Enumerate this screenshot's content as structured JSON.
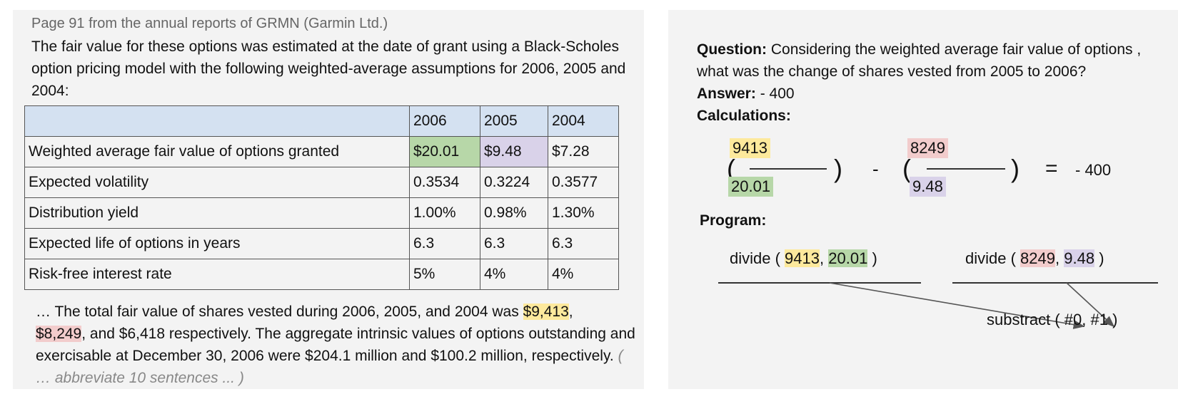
{
  "left": {
    "caption": "Page 91 from the annual reports of GRMN (Garmin Ltd.)",
    "intro": "The fair value for these options was estimated at the date of grant using a Black-Scholes option pricing model with the following weighted-average assumptions for 2006, 2005 and 2004:",
    "table": {
      "header": [
        "",
        "2006",
        "2005",
        "2004"
      ],
      "rows": [
        [
          "Weighted average fair value of options granted",
          "$20.01",
          "$9.48",
          "$7.28"
        ],
        [
          "Expected volatility",
          "0.3534",
          "0.3224",
          "0.3577"
        ],
        [
          "Distribution yield",
          "1.00%",
          "0.98%",
          "1.30%"
        ],
        [
          "Expected life of options in years",
          "6.3",
          "6.3",
          "6.3"
        ],
        [
          "Risk-free interest rate",
          "5%",
          "4%",
          "4%"
        ]
      ]
    },
    "tail": {
      "part1": "… The total fair value of shares vested during 2006, 2005, and 2004 was ",
      "hl1": "$9,413",
      "part2": ",",
      "hl2": "$8,249",
      "part3": ", and $6,418 respectively. The aggregate intrinsic values of options outstanding and exercisable at December 30, 2006 were $204.1 million and $100.2 million, respectively. ",
      "abbr": "( … abbreviate 10 sentences ... )"
    }
  },
  "right": {
    "question_label": "Question:",
    "question": "Considering the weighted average fair value of options , what was the change of shares vested from 2005 to 2006?",
    "answer_label": "Answer:",
    "answer": "- 400",
    "calc_label": "Calculations:",
    "calc": {
      "num1": "9413",
      "den1": "20.01",
      "num2": "8249",
      "den2": "9.48",
      "open": "(",
      "close": ")",
      "minus": "-",
      "equals": "=",
      "result": "- 400"
    },
    "program_label": "Program:",
    "program": {
      "step1_fn": "divide (",
      "step1_a": "9413",
      "step1_b": "20.01",
      "step2_fn": "divide (",
      "step2_a": "8249",
      "step2_b": "9.48",
      "comma": ",",
      "close": ")",
      "step3": "substract ( #0, #1 )"
    }
  }
}
